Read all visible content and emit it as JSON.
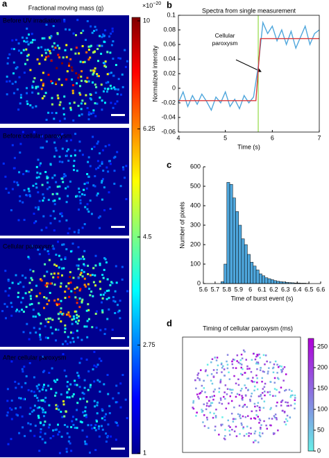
{
  "panel_labels": [
    "a",
    "b",
    "c",
    "d"
  ],
  "image_panel": {
    "title": "Fractional moving mass (g)",
    "captions": [
      "Before UV irradiation",
      "Before cellular paroxysm",
      "Cellular paroxysm",
      "After cellular paroxysm"
    ],
    "colorbar": {
      "ticks": [
        1,
        2.75,
        4.5,
        6.25,
        10
      ],
      "exponent_base": "×10",
      "exponent": "−20"
    }
  },
  "chart_data": [
    {
      "type": "line",
      "title": "Spectra from single measurement",
      "x_label": "Time (s)",
      "y_label": "Normalized intensity",
      "annotation": "Cellular paroxysm",
      "xlim": [
        4,
        7
      ],
      "xticks": [
        4,
        5,
        6,
        7
      ],
      "ylim": [
        -0.06,
        0.1
      ],
      "yticks": [
        -0.06,
        -0.04,
        -0.02,
        0,
        0.02,
        0.04,
        0.06,
        0.08,
        0.1
      ],
      "vline_x": 5.7,
      "vline_color": "#7ed321",
      "series": [
        {
          "color": "#4ea6dc",
          "x": [
            4.0,
            4.1,
            4.2,
            4.3,
            4.4,
            4.5,
            4.6,
            4.7,
            4.8,
            4.9,
            5.0,
            5.1,
            5.2,
            5.3,
            5.4,
            5.5,
            5.6,
            5.7,
            5.8,
            5.9,
            6.0,
            6.1,
            6.2,
            6.3,
            6.4,
            6.5,
            6.6,
            6.7,
            6.8,
            6.9,
            7.0
          ],
          "values": [
            -0.02,
            -0.005,
            -0.025,
            -0.01,
            -0.022,
            -0.008,
            -0.018,
            -0.03,
            -0.012,
            -0.02,
            -0.005,
            -0.025,
            -0.015,
            -0.028,
            -0.01,
            -0.02,
            -0.012,
            0.03,
            0.09,
            0.075,
            0.085,
            0.065,
            0.08,
            0.06,
            0.078,
            0.055,
            0.07,
            0.085,
            0.06,
            0.075,
            0.08
          ]
        },
        {
          "color": "#d9383a",
          "x": [
            4.0,
            5.65,
            5.75,
            7.0
          ],
          "values": [
            -0.017,
            -0.017,
            0.068,
            0.068
          ]
        }
      ]
    },
    {
      "type": "histogram",
      "x_label": "Time of burst event (s)",
      "y_label": "Number of pixels",
      "color": "#4ea6dc",
      "xlim": [
        5.6,
        6.6
      ],
      "xticks": [
        5.6,
        5.7,
        5.8,
        5.9,
        6,
        6.1,
        6.2,
        6.3,
        6.4,
        6.5,
        6.6
      ],
      "ylim": [
        0,
        600
      ],
      "yticks": [
        0,
        100,
        200,
        300,
        400,
        500,
        600
      ],
      "bins": [
        5.75,
        5.775,
        5.8,
        5.825,
        5.85,
        5.875,
        5.9,
        5.925,
        5.95,
        5.975,
        6.0,
        6.025,
        6.05,
        6.075,
        6.1,
        6.125,
        6.15,
        6.175,
        6.2,
        6.225,
        6.25,
        6.275,
        6.3,
        6.325,
        6.35,
        6.375,
        6.4,
        6.425,
        6.45,
        6.475,
        6.5
      ],
      "values": [
        10,
        100,
        520,
        510,
        440,
        370,
        300,
        230,
        200,
        150,
        110,
        90,
        70,
        50,
        40,
        30,
        25,
        20,
        15,
        12,
        10,
        8,
        6,
        5,
        4,
        3,
        3,
        2,
        2,
        1
      ]
    }
  ],
  "timing_map": {
    "title": "Timing of cellular paroxysm (ms)",
    "colorbar": {
      "lim": [
        0,
        270
      ],
      "ticks": [
        0,
        50,
        100,
        150,
        200,
        250
      ]
    }
  }
}
